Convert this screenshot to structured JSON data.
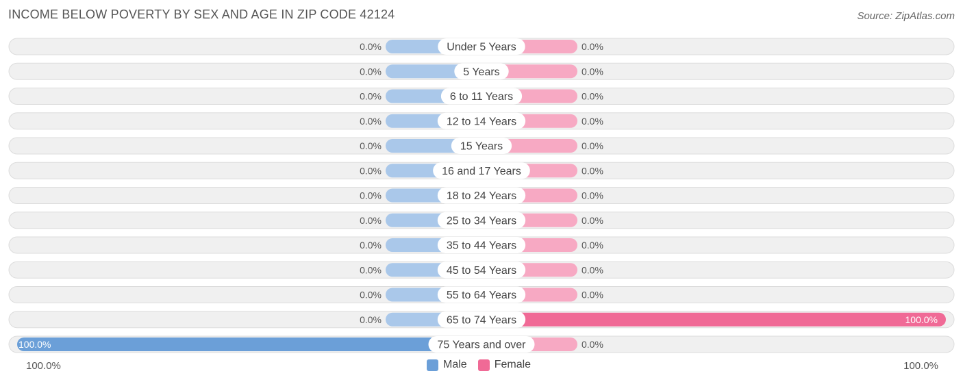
{
  "title": "INCOME BELOW POVERTY BY SEX AND AGE IN ZIP CODE 42124",
  "source": "Source: ZipAtlas.com",
  "colors": {
    "male_light": "#aac8ea",
    "male_full": "#6b9fd8",
    "female_light": "#f7a9c3",
    "female_full": "#f06a96",
    "row_bg": "#f0f0f0",
    "row_border": "#dcdcdc"
  },
  "chart_data": {
    "type": "bar",
    "orientation": "horizontal-diverging",
    "categories": [
      "Under 5 Years",
      "5 Years",
      "6 to 11 Years",
      "12 to 14 Years",
      "15 Years",
      "16 and 17 Years",
      "18 to 24 Years",
      "25 to 34 Years",
      "35 to 44 Years",
      "45 to 54 Years",
      "55 to 64 Years",
      "65 to 74 Years",
      "75 Years and over"
    ],
    "series": [
      {
        "name": "Male",
        "values": [
          0,
          0,
          0,
          0,
          0,
          0,
          0,
          0,
          0,
          0,
          0,
          0,
          100
        ],
        "labels": [
          "0.0%",
          "0.0%",
          "0.0%",
          "0.0%",
          "0.0%",
          "0.0%",
          "0.0%",
          "0.0%",
          "0.0%",
          "0.0%",
          "0.0%",
          "0.0%",
          "100.0%"
        ]
      },
      {
        "name": "Female",
        "values": [
          0,
          0,
          0,
          0,
          0,
          0,
          0,
          0,
          0,
          0,
          0,
          100,
          0
        ],
        "labels": [
          "0.0%",
          "0.0%",
          "0.0%",
          "0.0%",
          "0.0%",
          "0.0%",
          "0.0%",
          "0.0%",
          "0.0%",
          "0.0%",
          "0.0%",
          "100.0%",
          "0.0%"
        ]
      }
    ],
    "xlim": [
      0,
      100
    ],
    "axis_left_label": "100.0%",
    "axis_right_label": "100.0%",
    "legend": [
      "Male",
      "Female"
    ],
    "legend_position": "bottom-center"
  }
}
